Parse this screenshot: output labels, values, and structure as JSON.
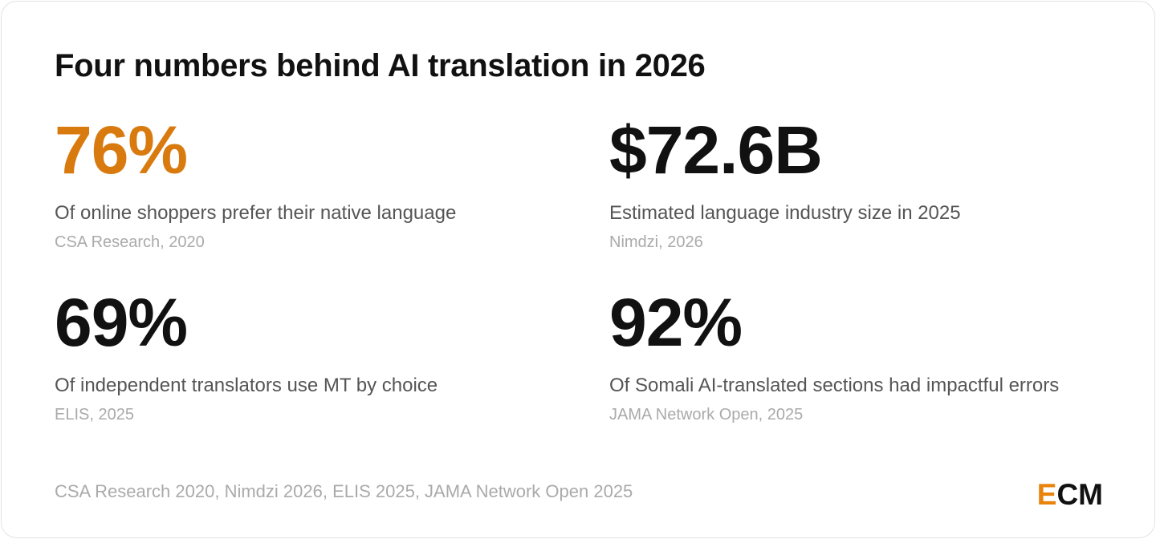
{
  "title": "Four numbers behind AI translation in 2026",
  "stats": [
    {
      "value": "76%",
      "label": "Of online shoppers prefer their native language",
      "source": "CSA Research, 2020",
      "color": "#d97a0f"
    },
    {
      "value": "$72.6B",
      "label": "Estimated language industry size in 2025",
      "source": "Nimdzi, 2026",
      "color": "#111111"
    },
    {
      "value": "69%",
      "label": "Of independent translators use MT by choice",
      "source": "ELIS, 2025",
      "color": "#111111"
    },
    {
      "value": "92%",
      "label": "Of Somali AI-translated sections had impactful errors",
      "source": "JAMA Network Open, 2025",
      "color": "#111111"
    }
  ],
  "footer": "CSA Research 2020, Nimdzi 2026, ELIS 2025, JAMA Network Open 2025",
  "logo": {
    "accent": "E",
    "rest": "CM",
    "accent_color": "#e8830c"
  }
}
